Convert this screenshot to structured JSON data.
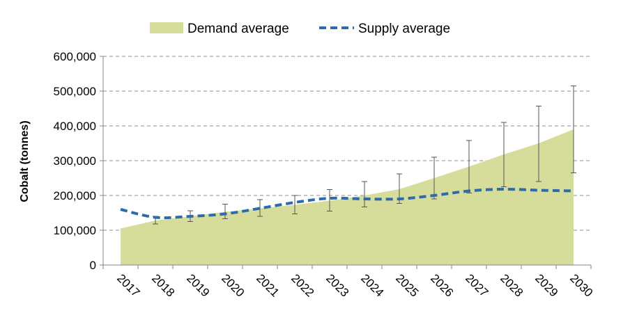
{
  "chart_data": {
    "type": "area",
    "title": "",
    "xlabel": "",
    "ylabel": "Cobalt (tonnes)",
    "x": [
      "2017",
      "2018",
      "2019",
      "2020",
      "2021",
      "2022",
      "2023",
      "2024",
      "2025",
      "2026",
      "2027",
      "2028",
      "2029",
      "2030"
    ],
    "ylim": [
      0,
      600000
    ],
    "yticks": [
      0,
      100000,
      200000,
      300000,
      400000,
      500000,
      600000
    ],
    "ytick_labels": [
      "0",
      "100,000",
      "200,000",
      "300,000",
      "400,000",
      "500,000",
      "600,000"
    ],
    "grid": true,
    "legend": "top-center",
    "series": [
      {
        "name": "Demand average",
        "type": "area",
        "color": "#d6dc9a",
        "values": [
          105000,
          128000,
          140000,
          153000,
          163000,
          173000,
          185000,
          200000,
          218000,
          250000,
          283000,
          318000,
          350000,
          390000
        ],
        "error_low": [
          105000,
          118000,
          125000,
          133000,
          140000,
          147000,
          155000,
          167000,
          177000,
          190000,
          207000,
          225000,
          240000,
          265000
        ],
        "error_high": [
          105000,
          140000,
          156000,
          175000,
          188000,
          200000,
          217000,
          240000,
          262000,
          310000,
          358000,
          410000,
          457000,
          515000
        ]
      },
      {
        "name": "Supply average",
        "type": "line",
        "style": "dashed",
        "color": "#2e6bab",
        "values": [
          160000,
          137000,
          140000,
          147000,
          163000,
          180000,
          192000,
          190000,
          190000,
          200000,
          213000,
          218000,
          215000,
          213000
        ]
      }
    ]
  }
}
